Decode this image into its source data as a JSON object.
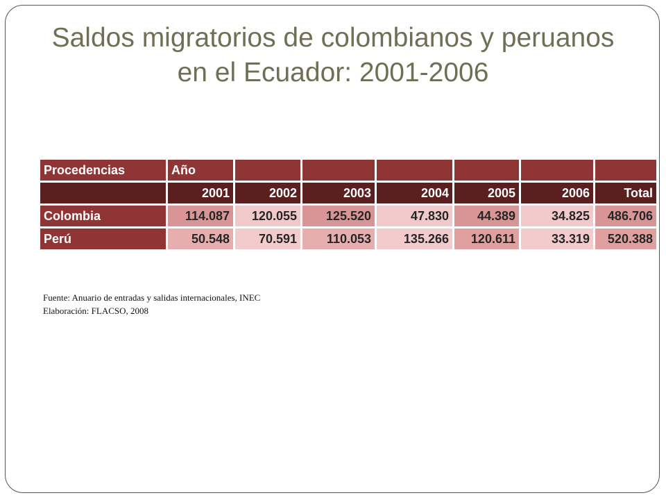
{
  "title": "Saldos migratorios de colombianos y peruanos en el Ecuador: 2001-2006",
  "table": {
    "header_label": "Procedencias",
    "year_label": "Año",
    "year_headers": [
      "2001",
      "2002",
      "2003",
      "2004",
      "2005",
      "2006",
      "Total"
    ],
    "rows": [
      {
        "label": "Colombia",
        "values": [
          "114.087",
          "120.055",
          "125.520",
          "47.830",
          "44.389",
          "34.825",
          "486.706"
        ],
        "cell_colors": [
          "#d99595",
          "#f0c9c9",
          "#d99595",
          "#f0c9c9",
          "#d99595",
          "#f0c9c9",
          "#d99595"
        ]
      },
      {
        "label": "Perú",
        "values": [
          "50.548",
          "70.591",
          "110.053",
          "135.266",
          "120.611",
          "33.319",
          "520.388"
        ],
        "cell_colors": [
          "#e6aeae",
          "#f2cccc",
          "#e6aeae",
          "#f2cccc",
          "#e0a0a0",
          "#f2cccc",
          "#e0a0a0"
        ]
      }
    ]
  },
  "source": "Fuente: Anuario de entradas y salidas internacionales, INEC",
  "credit": "Elaboración:  FLACSO, 2008",
  "colors": {
    "title": "#6f6f55",
    "header_bg": "#8f3535",
    "year_bg": "#5c1f1f"
  }
}
